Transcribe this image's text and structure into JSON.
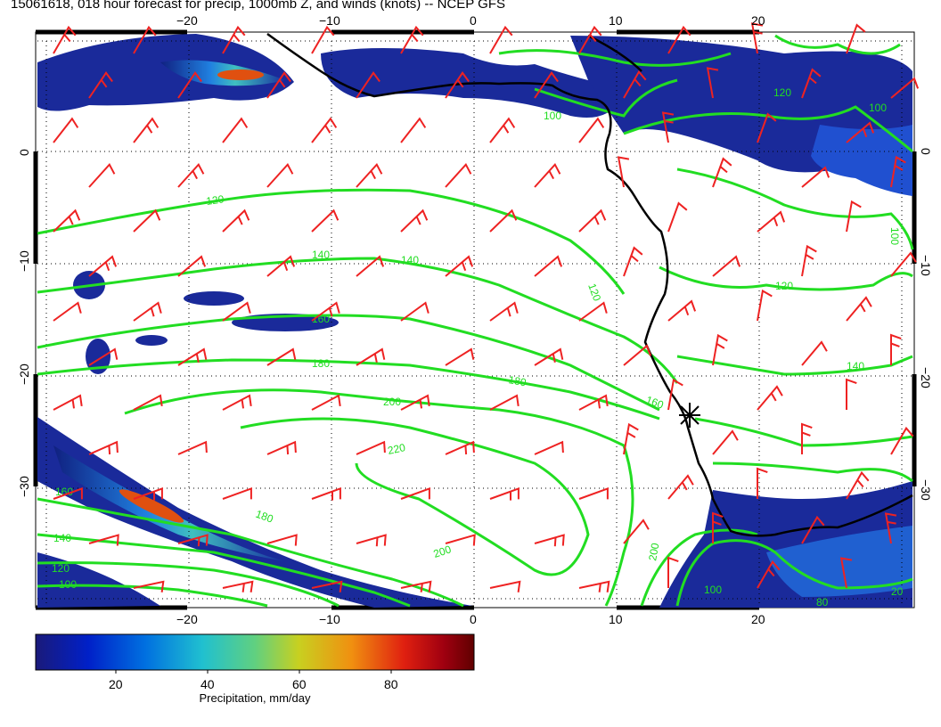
{
  "title": "15061618, 018 hour forecast for precip, 1000mb Z, and winds (knots) -- NCEP GFS",
  "map": {
    "lon_ticks": [
      "−20",
      "−10",
      "0",
      "10",
      "20"
    ],
    "lat_ticks": [
      "0",
      "−10",
      "−20",
      "−30"
    ],
    "lon_range": [
      -30,
      30
    ],
    "lat_range": [
      -40,
      10
    ],
    "grid": "dotted",
    "contour_color": "#22dd22",
    "wind_color": "#ee2222",
    "coast_color": "#000000",
    "contour_labels": [
      "120",
      "140",
      "140",
      "160",
      "180",
      "180",
      "200",
      "220",
      "180",
      "200",
      "120",
      "100",
      "140",
      "160",
      "100",
      "120",
      "140",
      "120",
      "100",
      "100",
      "120",
      "200",
      "160",
      "100",
      "80",
      "20"
    ],
    "marker": "station-star"
  },
  "colorbar": {
    "title": "Precipitation, mm/day",
    "ticks": [
      "20",
      "40",
      "60",
      "80"
    ],
    "colors": [
      "#1a1a7a",
      "#0020c8",
      "#0070e0",
      "#20c0d0",
      "#60d080",
      "#c8d020",
      "#f09010",
      "#e02010",
      "#a00010",
      "#600000"
    ]
  }
}
